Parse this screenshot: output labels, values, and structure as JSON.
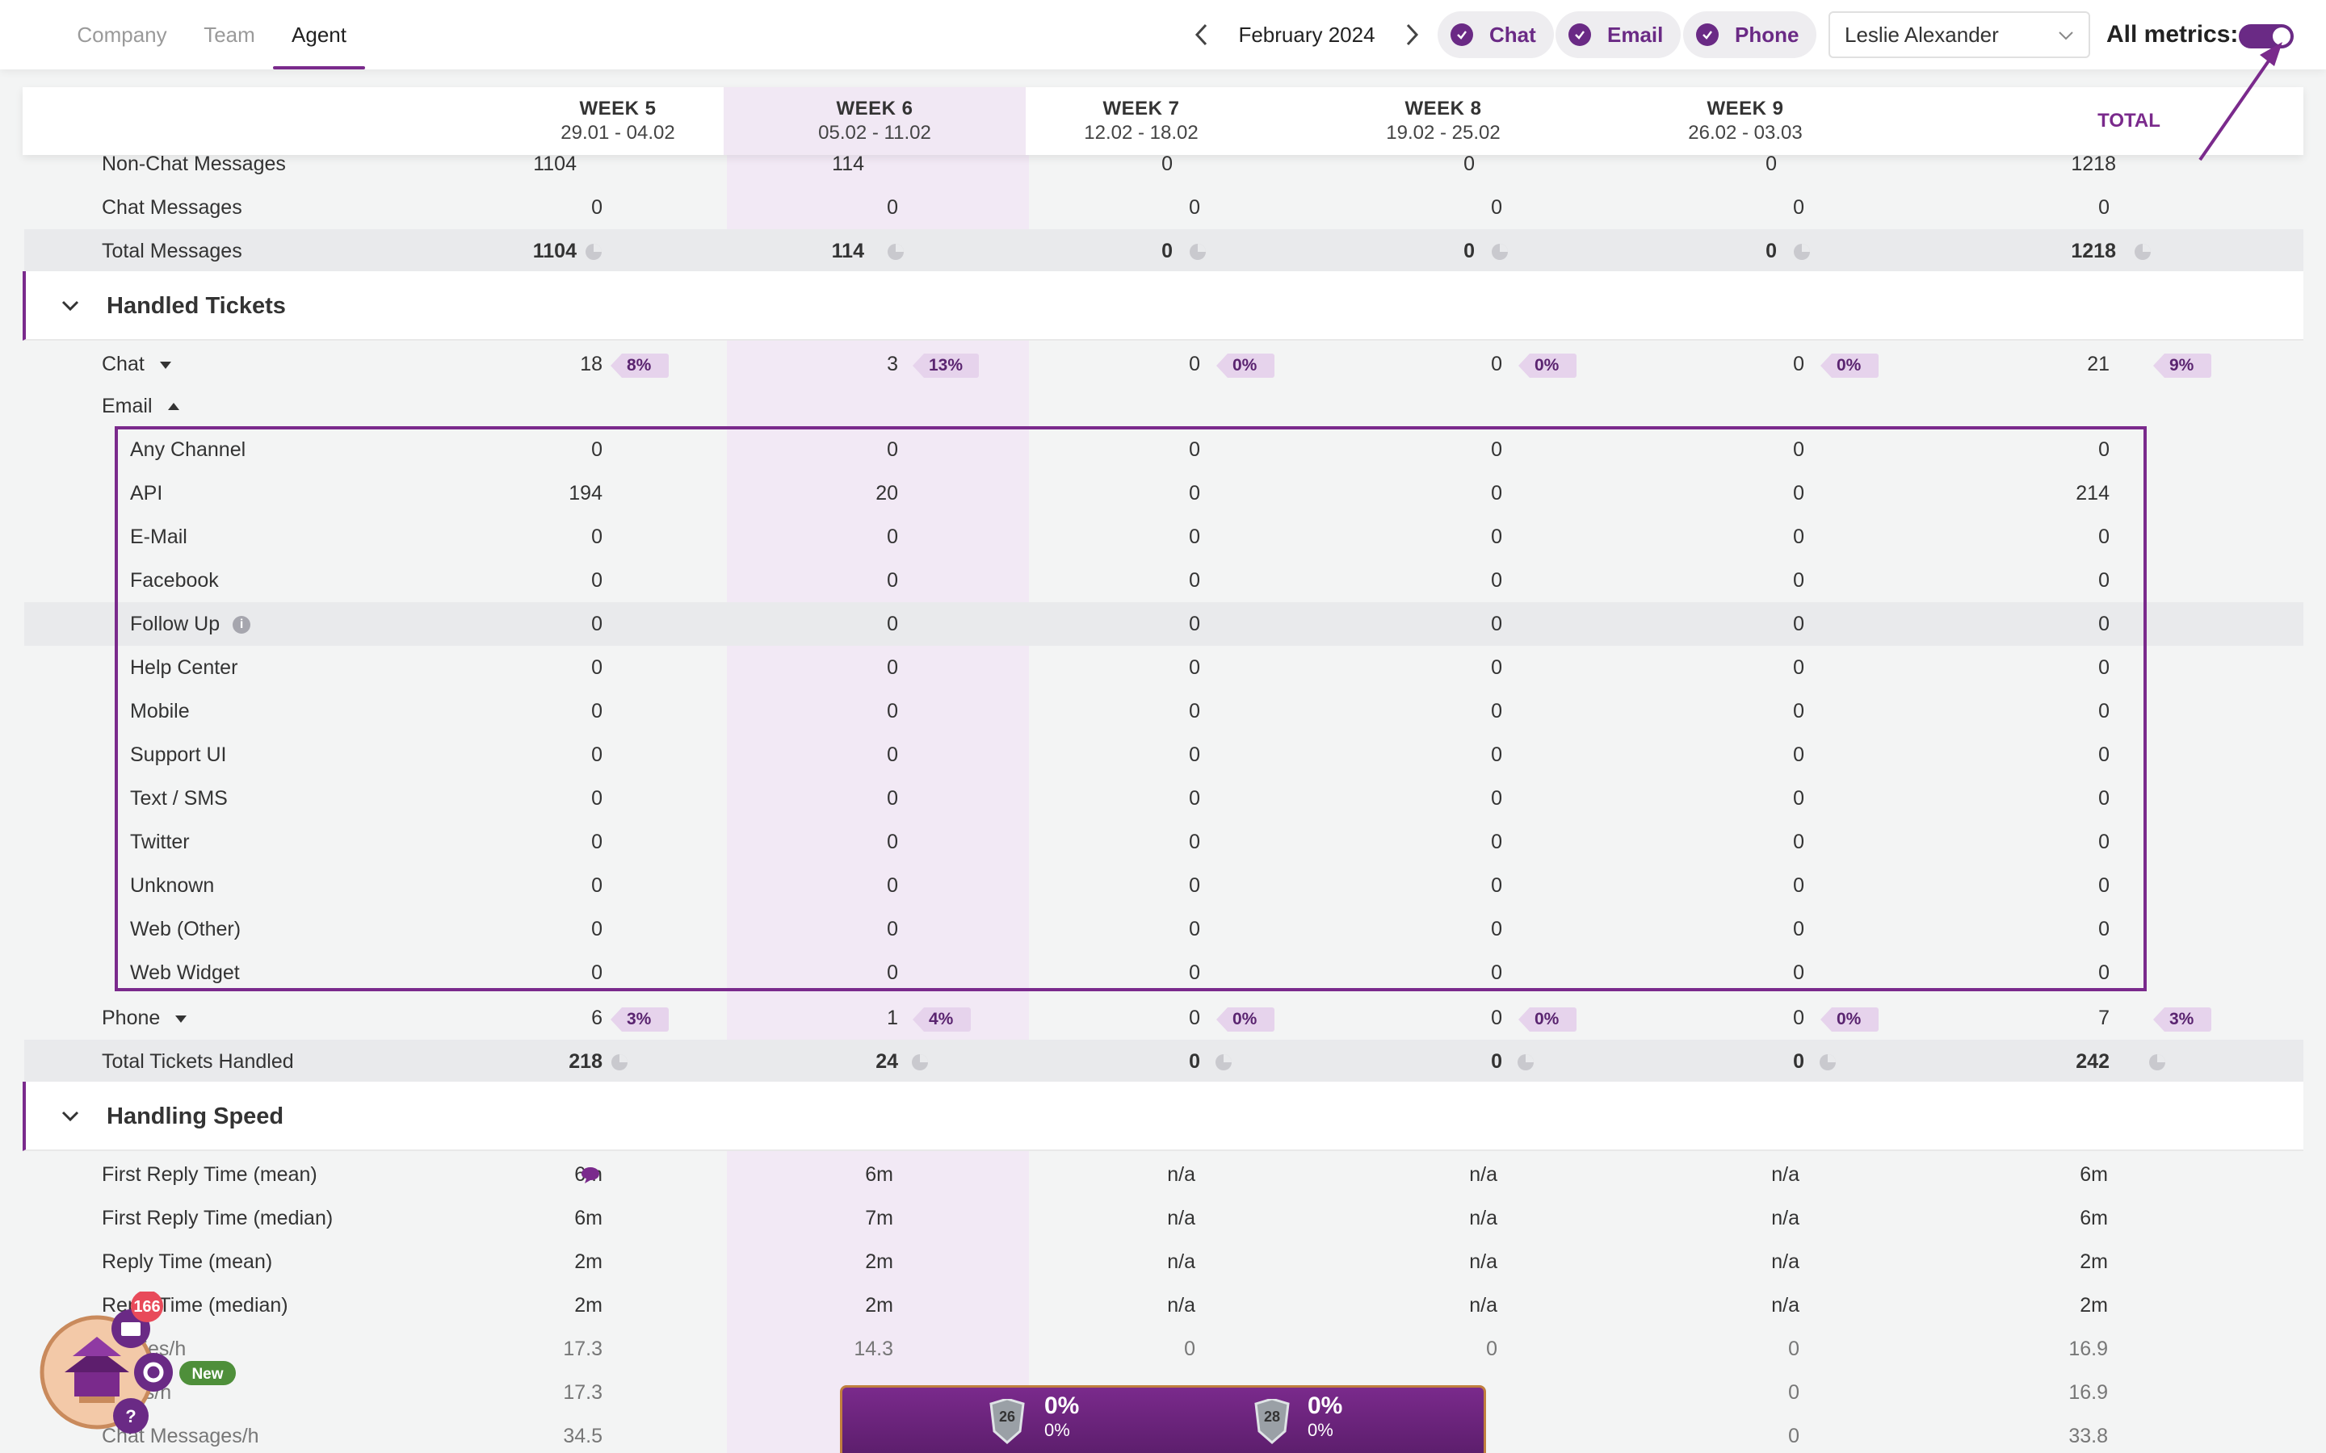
{
  "tabs": [
    {
      "label": "Company",
      "active": false
    },
    {
      "label": "Team",
      "active": false
    },
    {
      "label": "Agent",
      "active": true
    }
  ],
  "period": {
    "month": "February 2024"
  },
  "filters": [
    {
      "label": "Chat",
      "checked": true
    },
    {
      "label": "Email",
      "checked": true
    },
    {
      "label": "Phone",
      "checked": true
    }
  ],
  "agent_select": {
    "value": "Leslie Alexander"
  },
  "all_metrics": {
    "label": "All metrics:",
    "enabled": true
  },
  "weeks": [
    {
      "name": "WEEK 5",
      "dates": "29.01 - 04.02"
    },
    {
      "name": "WEEK 6",
      "dates": "05.02 - 11.02"
    },
    {
      "name": "WEEK 7",
      "dates": "12.02 - 18.02"
    },
    {
      "name": "WEEK 8",
      "dates": "19.02 - 25.02"
    },
    {
      "name": "WEEK 9",
      "dates": "26.02 - 03.03"
    }
  ],
  "total_label": "TOTAL",
  "messages_rows": [
    {
      "label": "Non-Chat Messages",
      "values": [
        "1104",
        "114",
        "0",
        "0",
        "0",
        "1218"
      ]
    },
    {
      "label": "Chat Messages",
      "values": [
        "0",
        "0",
        "0",
        "0",
        "0",
        "0"
      ]
    },
    {
      "label": "Total Messages",
      "values": [
        "1104",
        "114",
        "0",
        "0",
        "0",
        "1218"
      ]
    }
  ],
  "handled": {
    "title": "Handled Tickets",
    "chat": {
      "label": "Chat",
      "values": [
        "18",
        "3",
        "0",
        "0",
        "0",
        "21"
      ],
      "tags": [
        "8%",
        "13%",
        "0%",
        "0%",
        "0%",
        "9%"
      ]
    },
    "email_label": "Email",
    "email_rows": [
      {
        "label": "Any Channel",
        "values": [
          "0",
          "0",
          "0",
          "0",
          "0",
          "0"
        ]
      },
      {
        "label": "API",
        "values": [
          "194",
          "20",
          "0",
          "0",
          "0",
          "214"
        ]
      },
      {
        "label": "E-Mail",
        "values": [
          "0",
          "0",
          "0",
          "0",
          "0",
          "0"
        ]
      },
      {
        "label": "Facebook",
        "values": [
          "0",
          "0",
          "0",
          "0",
          "0",
          "0"
        ]
      },
      {
        "label": "Follow Up",
        "values": [
          "0",
          "0",
          "0",
          "0",
          "0",
          "0"
        ]
      },
      {
        "label": "Help Center",
        "values": [
          "0",
          "0",
          "0",
          "0",
          "0",
          "0"
        ]
      },
      {
        "label": "Mobile",
        "values": [
          "0",
          "0",
          "0",
          "0",
          "0",
          "0"
        ]
      },
      {
        "label": "Support UI",
        "values": [
          "0",
          "0",
          "0",
          "0",
          "0",
          "0"
        ]
      },
      {
        "label": "Text / SMS",
        "values": [
          "0",
          "0",
          "0",
          "0",
          "0",
          "0"
        ]
      },
      {
        "label": "Twitter",
        "values": [
          "0",
          "0",
          "0",
          "0",
          "0",
          "0"
        ]
      },
      {
        "label": "Unknown",
        "values": [
          "0",
          "0",
          "0",
          "0",
          "0",
          "0"
        ]
      },
      {
        "label": "Web (Other)",
        "values": [
          "0",
          "0",
          "0",
          "0",
          "0",
          "0"
        ]
      },
      {
        "label": "Web Widget",
        "values": [
          "0",
          "0",
          "0",
          "0",
          "0",
          "0"
        ]
      }
    ],
    "phone": {
      "label": "Phone",
      "values": [
        "6",
        "1",
        "0",
        "0",
        "0",
        "7"
      ],
      "tags": [
        "3%",
        "4%",
        "0%",
        "0%",
        "0%",
        "3%"
      ]
    },
    "total": {
      "label": "Total Tickets Handled",
      "values": [
        "218",
        "24",
        "0",
        "0",
        "0",
        "242"
      ]
    }
  },
  "speed": {
    "title": "Handling Speed",
    "rows": [
      {
        "label": "First Reply Time (mean)",
        "values": [
          "6m",
          "6m",
          "n/a",
          "n/a",
          "n/a",
          "6m"
        ]
      },
      {
        "label": "First Reply Time (median)",
        "values": [
          "6m",
          "7m",
          "n/a",
          "n/a",
          "n/a",
          "6m"
        ]
      },
      {
        "label": "Reply Time (mean)",
        "values": [
          "2m",
          "2m",
          "n/a",
          "n/a",
          "n/a",
          "2m"
        ]
      },
      {
        "label": "Reply Time (median)",
        "values": [
          "2m",
          "2m",
          "n/a",
          "n/a",
          "n/a",
          "2m"
        ]
      },
      {
        "label": "Replies/h",
        "values": [
          "17.3",
          "14.3",
          "0",
          "0",
          "0",
          "16.9"
        ]
      },
      {
        "label": "Notes/h",
        "values": [
          "17.3",
          "",
          "",
          "",
          "0",
          "16.9"
        ]
      },
      {
        "label": "Chat Messages/h",
        "values": [
          "34.5",
          "",
          "",
          "",
          "0",
          "33.8"
        ]
      }
    ]
  },
  "widget": {
    "badge_count": "166",
    "new_label": "New"
  },
  "bottom_bar": [
    {
      "level": "26",
      "percent": "0%",
      "sub": "0%"
    },
    {
      "level": "28",
      "percent": "0%",
      "sub": "0%"
    }
  ],
  "colors": {
    "accent": "#7a2a8c",
    "highlight_column": "#f2e9f5",
    "tag_bg": "#e6d3ec"
  }
}
